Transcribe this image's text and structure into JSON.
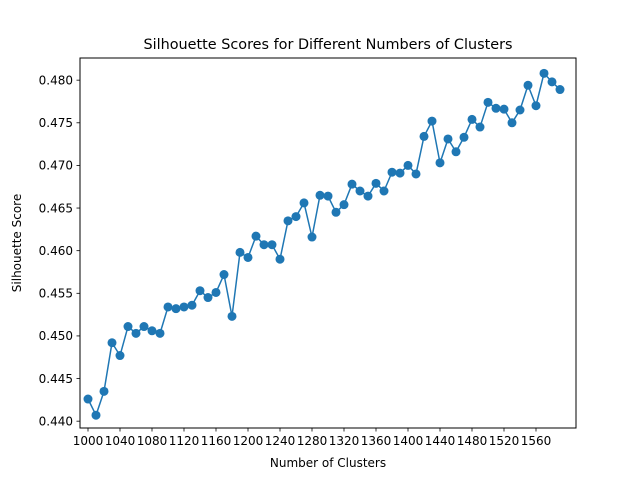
{
  "chart_data": {
    "type": "line",
    "title": "Silhouette Scores for Different Numbers of Clusters",
    "xlabel": "Number of Clusters",
    "ylabel": "Silhouette Score",
    "xlim": [
      990,
      1610
    ],
    "ylim": [
      0.4392,
      0.4826
    ],
    "xticks": [
      1000,
      1040,
      1080,
      1120,
      1160,
      1200,
      1240,
      1280,
      1320,
      1360,
      1400,
      1440,
      1480,
      1520,
      1560
    ],
    "yticks": [
      0.44,
      0.445,
      0.45,
      0.455,
      0.46,
      0.465,
      0.47,
      0.475,
      0.48
    ],
    "grid": false,
    "series_color": "#1f77b4",
    "marker": "circle",
    "x": [
      1000,
      1010,
      1020,
      1030,
      1040,
      1050,
      1060,
      1070,
      1080,
      1090,
      1100,
      1110,
      1120,
      1130,
      1140,
      1150,
      1160,
      1170,
      1180,
      1190,
      1200,
      1210,
      1220,
      1230,
      1240,
      1250,
      1260,
      1270,
      1280,
      1290,
      1300,
      1310,
      1320,
      1330,
      1340,
      1350,
      1360,
      1370,
      1380,
      1390,
      1400,
      1410,
      1420,
      1430,
      1440,
      1450,
      1460,
      1470,
      1480,
      1490,
      1500,
      1510,
      1520,
      1530,
      1540,
      1550,
      1560,
      1570,
      1580,
      1590
    ],
    "y": [
      0.4426,
      0.4407,
      0.4435,
      0.4492,
      0.4477,
      0.4511,
      0.4503,
      0.4511,
      0.4506,
      0.4503,
      0.4534,
      0.4532,
      0.4534,
      0.4536,
      0.4553,
      0.4545,
      0.4551,
      0.4572,
      0.4523,
      0.4598,
      0.4592,
      0.4617,
      0.4607,
      0.4607,
      0.459,
      0.4635,
      0.464,
      0.4656,
      0.4616,
      0.4665,
      0.4664,
      0.4645,
      0.4654,
      0.4678,
      0.467,
      0.4664,
      0.4679,
      0.467,
      0.4692,
      0.4691,
      0.47,
      0.469,
      0.4734,
      0.4752,
      0.4703,
      0.4731,
      0.4716,
      0.4733,
      0.4754,
      0.4745,
      0.4774,
      0.4767,
      0.4766,
      0.475,
      0.4765,
      0.4794,
      0.477,
      0.4808,
      0.4798,
      0.4789
    ]
  }
}
